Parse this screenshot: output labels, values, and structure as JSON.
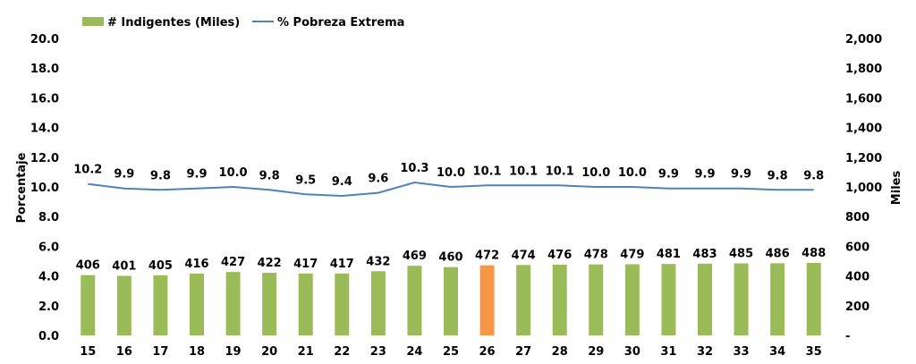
{
  "chart_data": {
    "type": "bar",
    "categories": [
      "15",
      "16",
      "17",
      "18",
      "19",
      "20",
      "21",
      "22",
      "23",
      "24",
      "25",
      "26",
      "27",
      "28",
      "29",
      "30",
      "31",
      "32",
      "33",
      "34",
      "35"
    ],
    "series": [
      {
        "name": "# Indigentes (Miles)",
        "type": "bar",
        "axis": "right",
        "color": "#9BBB59",
        "values": [
          406,
          401,
          405,
          416,
          427,
          422,
          417,
          417,
          432,
          469,
          460,
          472,
          474,
          476,
          478,
          479,
          481,
          483,
          485,
          486,
          488
        ],
        "highlight_index": 11,
        "highlight_color": "#F79646"
      },
      {
        "name": "% Pobreza Extrema",
        "type": "line",
        "axis": "left",
        "color": "#4F81BD",
        "values": [
          10.2,
          9.9,
          9.8,
          9.9,
          10.0,
          9.8,
          9.5,
          9.4,
          9.6,
          10.3,
          10.0,
          10.1,
          10.1,
          10.1,
          10.0,
          10.0,
          9.9,
          9.9,
          9.9,
          9.8,
          9.8
        ]
      }
    ],
    "ylabel_left": "Porcentaje",
    "ylabel_right": "Miles",
    "ylim_left": [
      0,
      20
    ],
    "ylim_right": [
      0,
      2000
    ],
    "yticks_left": [
      "0.0",
      "2.0",
      "4.0",
      "6.0",
      "8.0",
      "10.0",
      "12.0",
      "14.0",
      "16.0",
      "18.0",
      "20.0"
    ],
    "yticks_right": [
      "-",
      "200",
      "400",
      "600",
      "800",
      "1,000",
      "1,200",
      "1,400",
      "1,600",
      "1,800",
      "2,000"
    ],
    "legend_position": "top-left",
    "grid": false
  }
}
